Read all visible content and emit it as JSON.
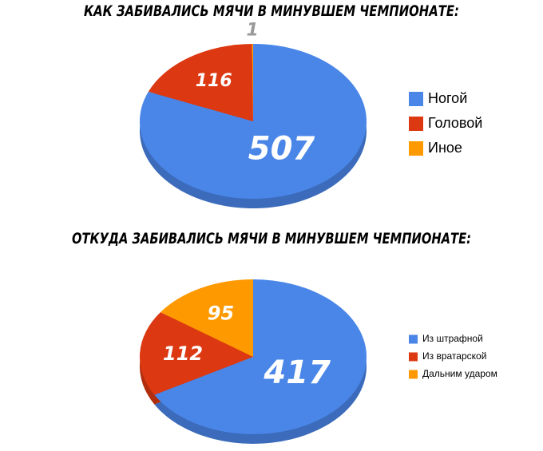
{
  "chart_data": [
    {
      "type": "pie",
      "title": "КАК ЗАБИВАЛИСЬ МЯЧИ В МИНУВШЕМ ЧЕМПИОНАТЕ:",
      "categories": [
        "Ногой",
        "Головой",
        "Иное"
      ],
      "values": [
        507,
        116,
        1
      ],
      "colors": [
        "#4a86e8",
        "#dc3912",
        "#ff9900"
      ],
      "legend": "right"
    },
    {
      "type": "pie",
      "title": "ОТКУДА ЗАБИВАЛИСЬ МЯЧИ В МИНУВШЕМ ЧЕМПИОНАТЕ:",
      "categories": [
        "Из штрафной",
        "Из вратарской",
        "Дальним ударом"
      ],
      "values": [
        417,
        112,
        95
      ],
      "colors": [
        "#4a86e8",
        "#dc3912",
        "#ff9900"
      ],
      "legend": "right"
    }
  ]
}
